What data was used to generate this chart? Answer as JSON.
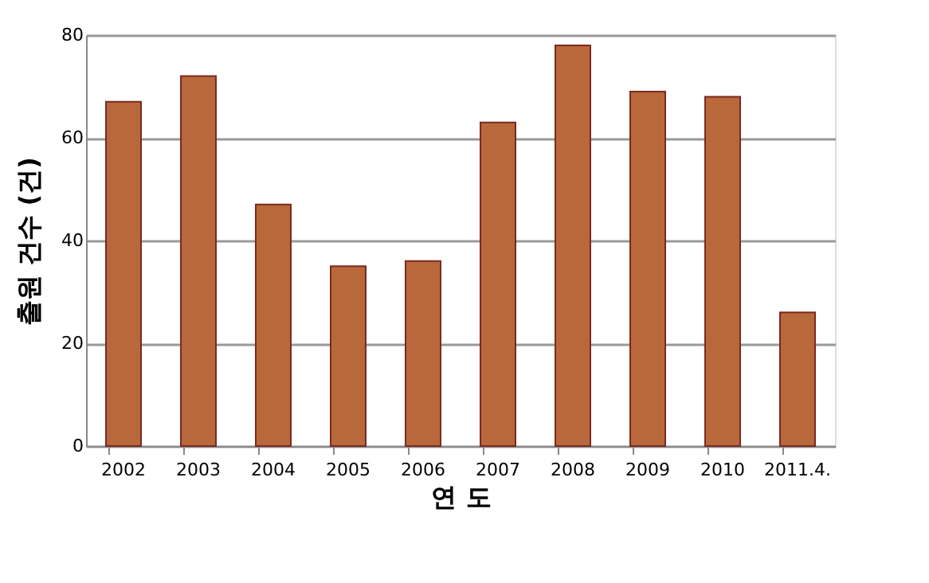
{
  "chart_data": {
    "type": "bar",
    "xlabel": "연 도",
    "ylabel": "출원 건수 (건)",
    "categories": [
      "2002",
      "2003",
      "2004",
      "2005",
      "2006",
      "2007",
      "2008",
      "2009",
      "2010",
      "2011.4."
    ],
    "values": [
      67,
      72,
      47,
      35,
      36,
      63,
      78,
      69,
      68,
      26
    ],
    "color": "#b8683a",
    "ylim": [
      0,
      80
    ],
    "yticks": [
      0,
      20,
      40,
      60,
      80
    ],
    "grid": "y"
  }
}
